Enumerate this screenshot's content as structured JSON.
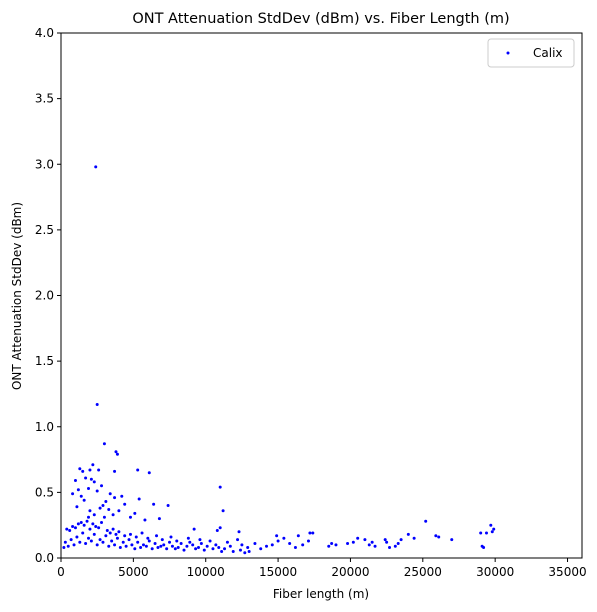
{
  "chart_data": {
    "type": "scatter",
    "title": "ONT Attenuation StdDev (dBm) vs. Fiber Length (m)",
    "xlabel": "Fiber length (m)",
    "ylabel": "ONT Attenuation StdDev (dBm)",
    "xlim": [
      0,
      36000
    ],
    "ylim": [
      0,
      4.0
    ],
    "xticks": [
      0,
      5000,
      10000,
      15000,
      20000,
      25000,
      30000,
      35000
    ],
    "xtick_labels": [
      "0",
      "5000",
      "10000",
      "15000",
      "20000",
      "25000",
      "30000",
      "35000"
    ],
    "yticks": [
      0,
      0.5,
      1.0,
      1.5,
      2.0,
      2.5,
      3.0,
      3.5,
      4.0
    ],
    "ytick_labels": [
      "0.0",
      "0.5",
      "1.0",
      "1.5",
      "2.0",
      "2.5",
      "3.0",
      "3.5",
      "4.0"
    ],
    "grid": false,
    "legend_position": "upper right",
    "series": [
      {
        "name": "Calix",
        "color": "#0000ff",
        "marker": "dot",
        "points": [
          [
            2400,
            2.98
          ],
          [
            2500,
            1.17
          ],
          [
            3000,
            0.87
          ],
          [
            3800,
            0.81
          ],
          [
            3900,
            0.79
          ],
          [
            2200,
            0.71
          ],
          [
            1300,
            0.68
          ],
          [
            1500,
            0.66
          ],
          [
            2600,
            0.67
          ],
          [
            2000,
            0.67
          ],
          [
            5300,
            0.67
          ],
          [
            6100,
            0.65
          ],
          [
            3700,
            0.66
          ],
          [
            1700,
            0.61
          ],
          [
            2100,
            0.6
          ],
          [
            2300,
            0.58
          ],
          [
            1000,
            0.59
          ],
          [
            800,
            0.49
          ],
          [
            1200,
            0.52
          ],
          [
            2800,
            0.55
          ],
          [
            1900,
            0.53
          ],
          [
            2500,
            0.51
          ],
          [
            3400,
            0.49
          ],
          [
            1400,
            0.47
          ],
          [
            4200,
            0.47
          ],
          [
            3700,
            0.46
          ],
          [
            5400,
            0.45
          ],
          [
            3100,
            0.43
          ],
          [
            1600,
            0.44
          ],
          [
            2900,
            0.4
          ],
          [
            4400,
            0.41
          ],
          [
            2700,
            0.38
          ],
          [
            1100,
            0.39
          ],
          [
            3300,
            0.37
          ],
          [
            4000,
            0.36
          ],
          [
            7400,
            0.4
          ],
          [
            6400,
            0.41
          ],
          [
            2000,
            0.36
          ],
          [
            11000,
            0.54
          ],
          [
            11200,
            0.36
          ],
          [
            5100,
            0.34
          ],
          [
            3600,
            0.33
          ],
          [
            2300,
            0.33
          ],
          [
            4800,
            0.31
          ],
          [
            6800,
            0.3
          ],
          [
            1900,
            0.31
          ],
          [
            3000,
            0.31
          ],
          [
            5800,
            0.29
          ],
          [
            9200,
            0.22
          ],
          [
            10800,
            0.21
          ],
          [
            11000,
            0.23
          ],
          [
            12300,
            0.2
          ],
          [
            14900,
            0.17
          ],
          [
            16400,
            0.17
          ],
          [
            17200,
            0.19
          ],
          [
            17400,
            0.19
          ],
          [
            20500,
            0.15
          ],
          [
            21000,
            0.14
          ],
          [
            22500,
            0.12
          ],
          [
            23500,
            0.14
          ],
          [
            24000,
            0.18
          ],
          [
            24400,
            0.15
          ],
          [
            25200,
            0.28
          ],
          [
            25900,
            0.17
          ],
          [
            26100,
            0.16
          ],
          [
            27000,
            0.14
          ],
          [
            29000,
            0.19
          ],
          [
            29400,
            0.19
          ],
          [
            29700,
            0.25
          ],
          [
            29900,
            0.22
          ],
          [
            29800,
            0.2
          ],
          [
            29100,
            0.09
          ],
          [
            29200,
            0.08
          ],
          [
            21300,
            0.1
          ],
          [
            21500,
            0.12
          ],
          [
            21700,
            0.09
          ],
          [
            22700,
            0.08
          ],
          [
            23100,
            0.09
          ],
          [
            23300,
            0.11
          ],
          [
            22400,
            0.14
          ],
          [
            19800,
            0.11
          ],
          [
            20200,
            0.12
          ],
          [
            19000,
            0.1
          ],
          [
            18500,
            0.09
          ],
          [
            18700,
            0.11
          ],
          [
            17100,
            0.13
          ],
          [
            16700,
            0.1
          ],
          [
            16200,
            0.08
          ],
          [
            15800,
            0.11
          ],
          [
            15400,
            0.15
          ],
          [
            15000,
            0.13
          ],
          [
            14600,
            0.1
          ],
          [
            14200,
            0.09
          ],
          [
            13800,
            0.07
          ],
          [
            13400,
            0.11
          ],
          [
            13000,
            0.05
          ],
          [
            12900,
            0.08
          ],
          [
            12700,
            0.04
          ],
          [
            12500,
            0.1
          ],
          [
            12400,
            0.06
          ],
          [
            12200,
            0.14
          ],
          [
            11900,
            0.05
          ],
          [
            11700,
            0.09
          ],
          [
            11500,
            0.12
          ],
          [
            11300,
            0.07
          ],
          [
            11100,
            0.05
          ],
          [
            10900,
            0.08
          ],
          [
            10700,
            0.1
          ],
          [
            10500,
            0.07
          ],
          [
            10300,
            0.13
          ],
          [
            10100,
            0.09
          ],
          [
            9900,
            0.06
          ],
          [
            9700,
            0.11
          ],
          [
            9500,
            0.08
          ],
          [
            9300,
            0.07
          ],
          [
            9100,
            0.1
          ],
          [
            8900,
            0.12
          ],
          [
            8700,
            0.09
          ],
          [
            8500,
            0.06
          ],
          [
            8300,
            0.11
          ],
          [
            8100,
            0.08
          ],
          [
            7900,
            0.07
          ],
          [
            7700,
            0.09
          ],
          [
            7500,
            0.12
          ],
          [
            7300,
            0.07
          ],
          [
            7100,
            0.1
          ],
          [
            6900,
            0.09
          ],
          [
            6700,
            0.08
          ],
          [
            6500,
            0.11
          ],
          [
            6300,
            0.07
          ],
          [
            6100,
            0.13
          ],
          [
            5900,
            0.09
          ],
          [
            5700,
            0.1
          ],
          [
            5500,
            0.08
          ],
          [
            5300,
            0.12
          ],
          [
            5100,
            0.07
          ],
          [
            4900,
            0.1
          ],
          [
            4700,
            0.14
          ],
          [
            4500,
            0.09
          ],
          [
            4300,
            0.12
          ],
          [
            4100,
            0.08
          ],
          [
            3900,
            0.15
          ],
          [
            3700,
            0.1
          ],
          [
            3500,
            0.13
          ],
          [
            3300,
            0.09
          ],
          [
            3100,
            0.17
          ],
          [
            2900,
            0.12
          ],
          [
            2700,
            0.14
          ],
          [
            2500,
            0.1
          ],
          [
            2300,
            0.18
          ],
          [
            2100,
            0.13
          ],
          [
            1900,
            0.15
          ],
          [
            1700,
            0.11
          ],
          [
            1500,
            0.19
          ],
          [
            1300,
            0.12
          ],
          [
            1100,
            0.16
          ],
          [
            900,
            0.1
          ],
          [
            700,
            0.14
          ],
          [
            500,
            0.09
          ],
          [
            300,
            0.12
          ],
          [
            200,
            0.08
          ],
          [
            400,
            0.22
          ],
          [
            600,
            0.21
          ],
          [
            800,
            0.24
          ],
          [
            1000,
            0.23
          ],
          [
            1200,
            0.26
          ],
          [
            1400,
            0.27
          ],
          [
            1600,
            0.25
          ],
          [
            1800,
            0.28
          ],
          [
            2000,
            0.22
          ],
          [
            2200,
            0.26
          ],
          [
            2400,
            0.24
          ],
          [
            2600,
            0.23
          ],
          [
            2800,
            0.27
          ],
          [
            3200,
            0.21
          ],
          [
            3400,
            0.19
          ],
          [
            3600,
            0.22
          ],
          [
            3800,
            0.18
          ],
          [
            4000,
            0.2
          ],
          [
            4400,
            0.17
          ],
          [
            4800,
            0.18
          ],
          [
            5200,
            0.16
          ],
          [
            5600,
            0.19
          ],
          [
            6000,
            0.15
          ],
          [
            6600,
            0.17
          ],
          [
            7000,
            0.14
          ],
          [
            7600,
            0.16
          ],
          [
            8000,
            0.13
          ],
          [
            8800,
            0.15
          ],
          [
            9600,
            0.14
          ]
        ]
      }
    ]
  }
}
